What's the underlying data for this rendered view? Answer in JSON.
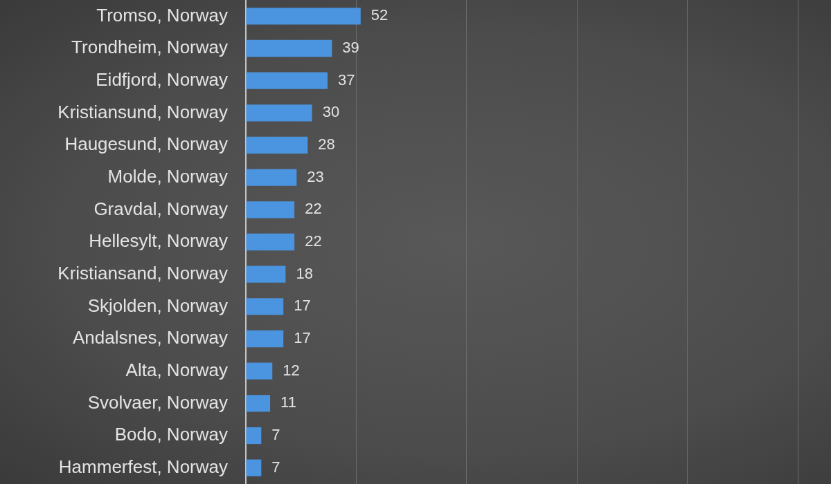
{
  "chart_data": {
    "type": "bar",
    "orientation": "horizontal",
    "categories": [
      "Tromso, Norway",
      "Trondheim, Norway",
      "Eidfjord, Norway",
      "Kristiansund, Norway",
      "Haugesund, Norway",
      "Molde, Norway",
      "Gravdal, Norway",
      "Hellesylt, Norway",
      "Kristiansand, Norway",
      "Skjolden, Norway",
      "Andalsnes, Norway",
      "Alta, Norway",
      "Svolvaer, Norway",
      "Bodo, Norway",
      "Hammerfest, Norway"
    ],
    "values": [
      52,
      39,
      37,
      30,
      28,
      23,
      22,
      22,
      18,
      17,
      17,
      12,
      11,
      7,
      7
    ],
    "color": "#4a94e0",
    "xlim": [
      0,
      265
    ],
    "xticks": [
      {
        "value": 0,
        "label": null
      },
      {
        "value": 50,
        "label": null
      },
      {
        "value": 100,
        "label": null
      },
      {
        "value": 150,
        "label": null
      },
      {
        "value": 200,
        "label": null
      },
      {
        "value": 250,
        "label": null
      }
    ],
    "grid": "x",
    "tick_labels": "y",
    "data_labels": true
  }
}
